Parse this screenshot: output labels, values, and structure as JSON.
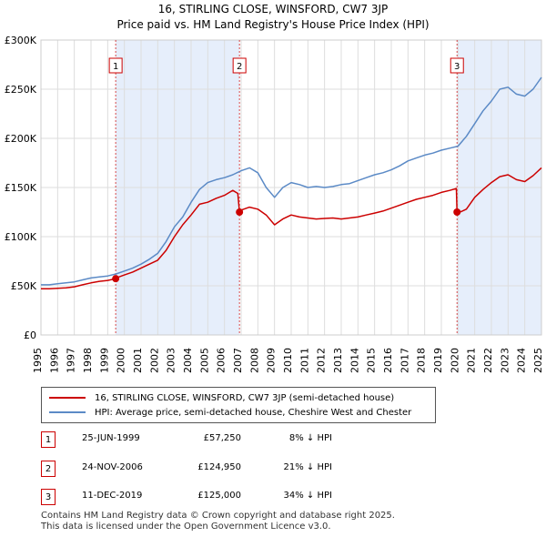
{
  "title_line1": "16, STIRLING CLOSE, WINSFORD, CW7 3JP",
  "title_line2": "Price paid vs. HM Land Registry's House Price Index (HPI)",
  "legend": {
    "property_label": "16, STIRLING CLOSE, WINSFORD, CW7 3JP (semi-detached house)",
    "hpi_label": "HPI: Average price, semi-detached house, Cheshire West and Chester"
  },
  "transactions": [
    {
      "id": "1",
      "date": "25-JUN-1999",
      "price": "£57,250",
      "hpi_delta": "8% ↓ HPI"
    },
    {
      "id": "2",
      "date": "24-NOV-2006",
      "price": "£124,950",
      "hpi_delta": "21% ↓ HPI"
    },
    {
      "id": "3",
      "date": "11-DEC-2019",
      "price": "£125,000",
      "hpi_delta": "34% ↓ HPI"
    }
  ],
  "footer": {
    "line1": "Contains HM Land Registry data © Crown copyright and database right 2025.",
    "line2": "This data is licensed under the Open Government Licence v3.0."
  },
  "colors": {
    "property": "#cc0000",
    "hpi": "#5b8ac6",
    "shade": "#e6eefb",
    "marker_line": "#cc0000"
  },
  "chart_data": {
    "type": "line",
    "title": "16, STIRLING CLOSE, WINSFORD, CW7 3JP",
    "subtitle": "Price paid vs. HM Land Registry's House Price Index (HPI)",
    "xlabel": "",
    "ylabel": "",
    "xlim": [
      1995,
      2025
    ],
    "ylim": [
      0,
      300000
    ],
    "x_ticks": [
      1995,
      1996,
      1997,
      1998,
      1999,
      2000,
      2001,
      2002,
      2003,
      2004,
      2005,
      2006,
      2007,
      2008,
      2009,
      2010,
      2011,
      2012,
      2013,
      2014,
      2015,
      2016,
      2017,
      2018,
      2019,
      2020,
      2021,
      2022,
      2023,
      2024,
      2025
    ],
    "y_ticks": [
      {
        "value": 0,
        "label": "£0"
      },
      {
        "value": 50000,
        "label": "£50K"
      },
      {
        "value": 100000,
        "label": "£100K"
      },
      {
        "value": 150000,
        "label": "£150K"
      },
      {
        "value": 200000,
        "label": "£200K"
      },
      {
        "value": 250000,
        "label": "£250K"
      },
      {
        "value": 300000,
        "label": "£300K"
      }
    ],
    "shaded_ranges": [
      [
        1999.48,
        2006.9
      ],
      [
        2019.94,
        2025
      ]
    ],
    "sales": [
      {
        "label": "1",
        "x": 1999.48,
        "y": 57250
      },
      {
        "label": "2",
        "x": 2006.9,
        "y": 124950
      },
      {
        "label": "3",
        "x": 2019.94,
        "y": 125000
      }
    ],
    "series": [
      {
        "name": "HPI: Average price, semi-detached house, Cheshire West and Chester",
        "x": [
          1995,
          1995.5,
          1996,
          1996.5,
          1997,
          1997.5,
          1998,
          1998.5,
          1999,
          1999.5,
          2000,
          2000.5,
          2001,
          2001.5,
          2002,
          2002.5,
          2003,
          2003.5,
          2004,
          2004.5,
          2005,
          2005.5,
          2006,
          2006.5,
          2007,
          2007.5,
          2008,
          2008.5,
          2009,
          2009.5,
          2010,
          2010.5,
          2011,
          2011.5,
          2012,
          2012.5,
          2013,
          2013.5,
          2014,
          2014.5,
          2015,
          2015.5,
          2016,
          2016.5,
          2017,
          2017.5,
          2018,
          2018.5,
          2019,
          2019.5,
          2020,
          2020.5,
          2021,
          2021.5,
          2022,
          2022.5,
          2023,
          2023.5,
          2024,
          2024.5,
          2025
        ],
        "values": [
          51000,
          51000,
          52000,
          53000,
          54000,
          56000,
          58000,
          59000,
          60000,
          62000,
          65000,
          68000,
          72000,
          77000,
          83000,
          95000,
          110000,
          120000,
          135000,
          148000,
          155000,
          158000,
          160000,
          163000,
          167000,
          170000,
          165000,
          150000,
          140000,
          150000,
          155000,
          153000,
          150000,
          151000,
          150000,
          151000,
          153000,
          154000,
          157000,
          160000,
          163000,
          165000,
          168000,
          172000,
          177000,
          180000,
          183000,
          185000,
          188000,
          190000,
          192000,
          202000,
          215000,
          228000,
          238000,
          250000,
          252000,
          245000,
          243000,
          250000,
          262000
        ]
      },
      {
        "name": "16, STIRLING CLOSE, WINSFORD, CW7 3JP (semi-detached house)",
        "x": [
          1995,
          1995.5,
          1996,
          1996.5,
          1997,
          1997.5,
          1998,
          1998.5,
          1999,
          1999.48,
          1999.5,
          2000,
          2000.5,
          2001,
          2001.5,
          2002,
          2002.5,
          2003,
          2003.5,
          2004,
          2004.5,
          2005,
          2005.5,
          2006,
          2006.5,
          2006.8,
          2006.9,
          2007,
          2007.5,
          2008,
          2008.5,
          2009,
          2009.5,
          2010,
          2010.5,
          2011,
          2011.5,
          2012,
          2012.5,
          2013,
          2013.5,
          2014,
          2014.5,
          2015,
          2015.5,
          2016,
          2016.5,
          2017,
          2017.5,
          2018,
          2018.5,
          2019,
          2019.5,
          2019.9,
          2019.94,
          2020,
          2020.5,
          2021,
          2021.5,
          2022,
          2022.5,
          2023,
          2023.5,
          2024,
          2024.5,
          2025
        ],
        "values": [
          47000,
          47000,
          47500,
          48000,
          49000,
          51000,
          53000,
          54500,
          55500,
          57250,
          58000,
          61000,
          64000,
          68000,
          72000,
          76000,
          86000,
          100000,
          112000,
          122000,
          133000,
          135000,
          139000,
          142000,
          147000,
          144000,
          124950,
          127000,
          130000,
          128000,
          122000,
          112000,
          118000,
          122000,
          120000,
          119000,
          118000,
          118500,
          119000,
          118000,
          119000,
          120000,
          122000,
          124000,
          126000,
          129000,
          132000,
          135000,
          138000,
          140000,
          142000,
          145000,
          147000,
          149000,
          125000,
          124000,
          128000,
          140000,
          148000,
          155000,
          161000,
          163000,
          158000,
          156000,
          162000,
          170000
        ]
      }
    ]
  }
}
